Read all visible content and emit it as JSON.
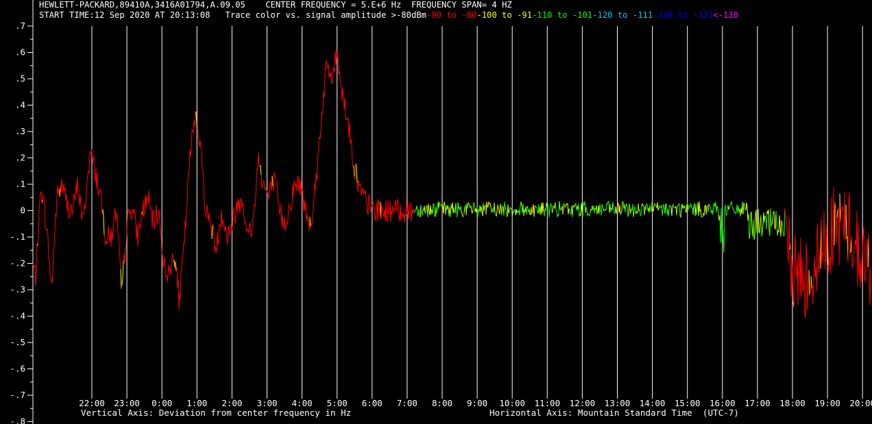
{
  "header": {
    "line1": {
      "instrument": "HEWLETT-PACKARD,89410A,3416A01794,A.09.05",
      "center_frequency": "CENTER FREQUENCY = 5.E+6 Hz",
      "frequency_span": "FREQUENCY SPAN= 4 HZ"
    },
    "line2": {
      "start_time": "START TIME:12 Sep 2020 AT 20:13:08",
      "legend_prefix": "Trace color vs. signal amplitude >-80dBm",
      "legend_items": [
        {
          "text": "-90 to -80",
          "color": "#ff0000"
        },
        {
          "text": "-100 to -91",
          "color": "#ffff00"
        },
        {
          "text": "-110 to -101",
          "color": "#00ff00"
        },
        {
          "text": "-120 to -111",
          "color": "#00c8ff"
        },
        {
          "text": "-130 to -121",
          "color": "#0000ff"
        },
        {
          "text": "<-130",
          "color": "#ff00ff"
        }
      ]
    }
  },
  "footer": {
    "vertical_axis": "Vertical Axis: Deviation from center frequency in Hz",
    "horizontal_axis": "Horizontal Axis: Mountain Standard Time  (UTC-7)"
  },
  "colors": {
    "background": "#000000",
    "text": "#ffffff",
    "gridline": "#ffffff",
    "trace_strong": "#ff0000",
    "trace_mid": "#ffff00",
    "trace_weak": "#00ff00"
  },
  "chart_data": {
    "type": "line",
    "title": "",
    "xlabel": "Horizontal Axis: Mountain Standard Time  (UTC-7)",
    "ylabel": "Vertical Axis: Deviation from center frequency in Hz",
    "y_ticks": [
      ".7",
      ".6",
      ".5",
      ".4",
      ".3",
      ".2",
      ".1",
      "0",
      "-.1",
      "-.2",
      "-.3",
      "-.4",
      "-.5",
      "-.6",
      "-.7",
      "-.8"
    ],
    "ylim": [
      -0.8,
      0.7
    ],
    "x_ticks": [
      "22:00",
      "23:00",
      "0:00",
      "1:00",
      "2:00",
      "3:00",
      "4:00",
      "5:00",
      "6:00",
      "7:00",
      "8:00",
      "9:00",
      "10:00",
      "11:00",
      "12:00",
      "13:00",
      "14:00",
      "15:00",
      "16:00",
      "17:00",
      "18:00",
      "19:00",
      "20:00"
    ],
    "grid": "vertical lines at each hour",
    "series": [
      {
        "x_hours_from_22": [
          -1.7,
          -1.6,
          -1.45,
          -1.3,
          -1.15,
          -1.0,
          -0.85,
          -0.7,
          -0.55,
          -0.4,
          -0.25,
          -0.05,
          0.1,
          0.25,
          0.4,
          0.55,
          0.7,
          0.85,
          1.0,
          1.15,
          1.3,
          1.45,
          1.6,
          1.75,
          1.9,
          2.05,
          2.2,
          2.35,
          2.5,
          2.65,
          2.8,
          2.95,
          3.1,
          3.25,
          3.4,
          3.55,
          3.7,
          3.85,
          4.0,
          4.15,
          4.3,
          4.45,
          4.6,
          4.75,
          4.9,
          5.05,
          5.2,
          5.35,
          5.5,
          5.65,
          5.8,
          5.95,
          6.1,
          6.25,
          6.4,
          6.55,
          6.7,
          6.85,
          7.0,
          7.15,
          7.3,
          7.45,
          7.6,
          7.75,
          7.9,
          8.05,
          8.2,
          8.35,
          8.5,
          8.65,
          8.8,
          8.95,
          9.1,
          9.2
        ],
        "values": [
          -0.2,
          -0.25,
          0.1,
          -0.05,
          -0.3,
          0.05,
          0.1,
          0.02,
          0.0,
          0.1,
          -0.05,
          0.22,
          0.15,
          0.05,
          -0.1,
          -0.1,
          0.0,
          -0.32,
          -0.05,
          0.02,
          -0.1,
          0.0,
          0.05,
          -0.05,
          0.0,
          -0.2,
          -0.25,
          -0.15,
          -0.35,
          -0.1,
          0.2,
          0.38,
          0.25,
          0.0,
          -0.05,
          -0.15,
          0.0,
          -0.1,
          -0.05,
          0.02,
          0.05,
          -0.1,
          -0.05,
          0.2,
          0.1,
          0.05,
          0.12,
          0.0,
          -0.05,
          0.02,
          0.1,
          0.1,
          0.0,
          -0.05,
          0.12,
          0.35,
          0.55,
          0.5,
          0.6,
          0.45,
          0.35,
          0.2,
          0.1,
          0.05,
          0.02,
          0.0,
          0.0,
          0.0,
          0.0,
          0.0,
          0.0,
          0.0,
          0.0,
          0.0
        ]
      }
    ]
  }
}
